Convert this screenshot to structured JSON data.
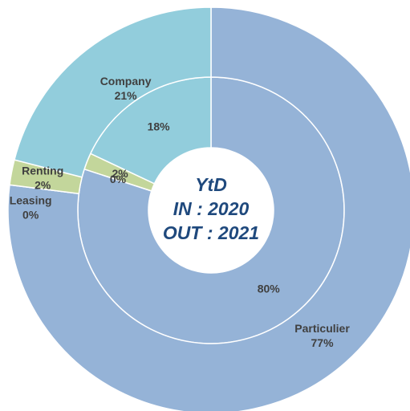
{
  "chart_data": {
    "type": "donut",
    "categories": [
      "Particulier",
      "Leasing",
      "Renting",
      "Company"
    ],
    "colors": [
      "#95b3d7",
      "#fac090",
      "#c3d69b",
      "#92cddc"
    ],
    "series": [
      {
        "values": [
          80,
          0,
          2,
          18
        ],
        "value_labels": [
          "80%",
          "0%",
          "2%",
          "18%"
        ]
      },
      {
        "values": [
          77,
          0,
          2,
          21
        ],
        "value_labels": [
          "77%",
          "0%",
          "2%",
          "21%"
        ]
      }
    ],
    "center_text": [
      "YtD",
      "IN : 2020",
      "OUT : 2021"
    ]
  }
}
